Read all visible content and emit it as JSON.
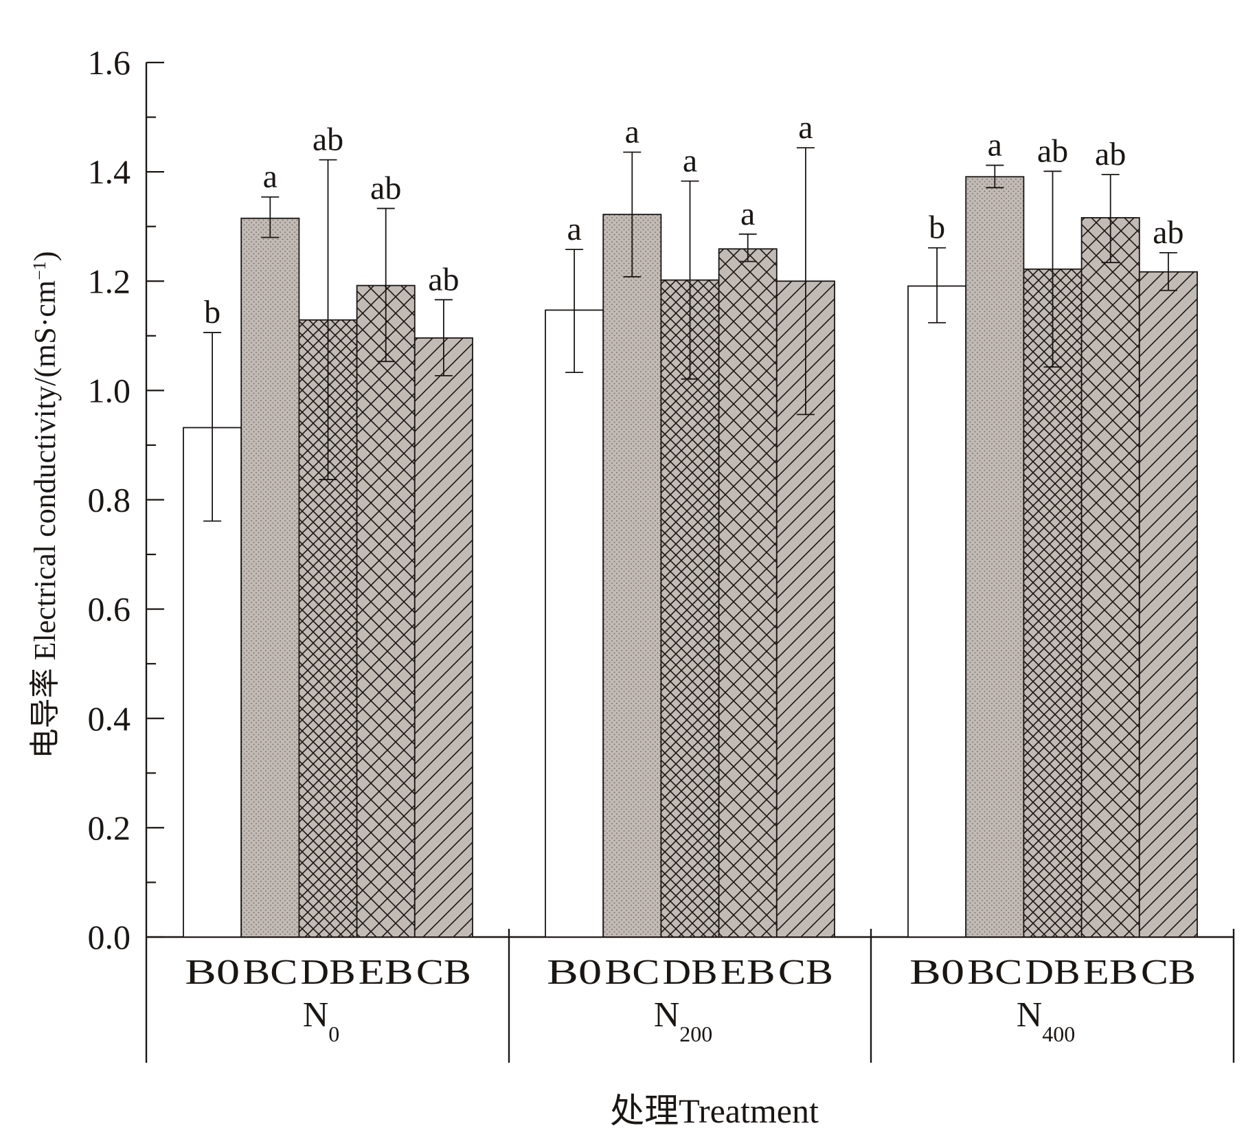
{
  "chart_data": {
    "type": "bar",
    "title": "",
    "ylabel": "电导率 Electrical conductivity/(mS·cm⁻¹)",
    "ylabel_parts": {
      "main": "电导率  Electrical conductivity/(mS·cm",
      "sup": "−1",
      "close": ")"
    },
    "xlabel": "处理Treatment",
    "ylim": [
      0,
      1.6
    ],
    "yticks": [
      "0.0",
      "0.2",
      "0.4",
      "0.6",
      "0.8",
      "1.0",
      "1.2",
      "1.4",
      "1.6"
    ],
    "ytick_values": [
      0,
      0.2,
      0.4,
      0.6,
      0.8,
      1.0,
      1.2,
      1.4,
      1.6
    ],
    "minor_tick_step": 0.1,
    "grid": false,
    "categories": [
      "B0",
      "BC",
      "DB",
      "EB",
      "CB"
    ],
    "groups": [
      {
        "label": "N",
        "sub": "0"
      },
      {
        "label": "N",
        "sub": "200"
      },
      {
        "label": "N",
        "sub": "400"
      }
    ],
    "series": [
      {
        "group": "N0",
        "values": [
          0.932,
          1.315,
          1.129,
          1.192,
          1.096
        ],
        "err_high": [
          1.106,
          1.354,
          1.422,
          1.333,
          1.166
        ],
        "err_low": [
          0.761,
          1.28,
          0.837,
          1.053,
          1.027
        ],
        "letters": [
          "b",
          "a",
          "ab",
          "ab",
          "ab"
        ]
      },
      {
        "group": "N200",
        "values": [
          1.147,
          1.322,
          1.202,
          1.259,
          1.2
        ],
        "err_high": [
          1.258,
          1.436,
          1.383,
          1.286,
          1.444
        ],
        "err_low": [
          1.033,
          1.208,
          1.021,
          1.236,
          0.956
        ],
        "letters": [
          "a",
          "a",
          "a",
          "a",
          "a"
        ]
      },
      {
        "group": "N400",
        "values": [
          1.191,
          1.391,
          1.222,
          1.316,
          1.217
        ],
        "err_high": [
          1.261,
          1.412,
          1.401,
          1.395,
          1.252
        ],
        "err_low": [
          1.124,
          1.371,
          1.043,
          1.234,
          1.183
        ],
        "letters": [
          "b",
          "a",
          "ab",
          "ab",
          "ab"
        ]
      }
    ],
    "fills": {
      "B0": {
        "pattern": "none",
        "color": "#ffffff"
      },
      "BC": {
        "pattern": "dots",
        "color": "#c2bab5"
      },
      "DB": {
        "pattern": "dense-crosshatch",
        "color": "#c2bab5"
      },
      "EB": {
        "pattern": "crosshatch",
        "color": "#c2bab5"
      },
      "CB": {
        "pattern": "diagonal",
        "color": "#c2bab5"
      }
    },
    "colors": {
      "ink": "#1a1614",
      "bar_fill": "#c2bab5"
    }
  }
}
